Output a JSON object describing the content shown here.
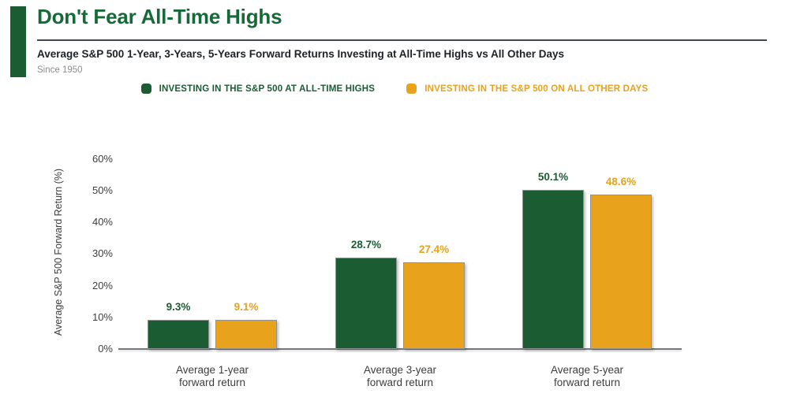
{
  "chart_data": {
    "type": "bar",
    "title": "Don't Fear All-Time Highs",
    "subtitle": "Average S&P 500 1-Year, 3-Years, 5-Years Forward Returns Investing at All-Time Highs vs All Other Days",
    "note": "Since 1950",
    "categories": [
      "Average 1-year forward return",
      "Average 3-year forward return",
      "Average 5-year forward return"
    ],
    "series": [
      {
        "name": "INVESTING IN THE S&P 500 AT ALL-TIME HIGHS",
        "color": "#1B5C33",
        "values": [
          9.3,
          28.7,
          50.1
        ]
      },
      {
        "name": "INVESTING IN THE S&P 500 ON ALL OTHER DAYS",
        "color": "#E9A21B",
        "values": [
          9.1,
          27.4,
          48.6
        ]
      }
    ],
    "value_label_suffix": "%",
    "ylabel": "Average S&P 500 Forward Return (%)",
    "yticks": [
      {
        "value": 0,
        "label": "0%"
      },
      {
        "value": 10,
        "label": "10%"
      },
      {
        "value": 20,
        "label": "20%"
      },
      {
        "value": 30,
        "label": "30%"
      },
      {
        "value": 40,
        "label": "40%"
      },
      {
        "value": 50,
        "label": "50%"
      },
      {
        "value": 60,
        "label": "60%"
      }
    ],
    "ylim": [
      0,
      60
    ],
    "grid": false,
    "legend_position": "top"
  },
  "colors": {
    "accent_green": "#1B5C33",
    "title_green": "#166A38",
    "orange": "#E9A21B",
    "divider_slate": "#3E4A52",
    "axis_gray": "#74787C",
    "subtitle_dark": "#1C2228",
    "note_gray": "#8C8C8C",
    "tick_gray": "#3D3D3D"
  }
}
